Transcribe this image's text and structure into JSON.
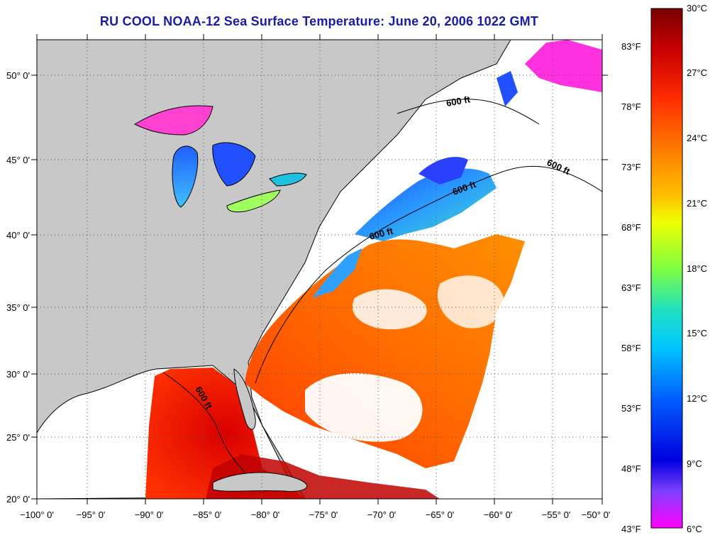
{
  "title": "RU COOL  NOAA-12  Sea Surface Temperature:  June 20, 2006 1022 GMT",
  "map": {
    "lat_labels": [
      "50° 0'",
      "45° 0'",
      "40° 0'",
      "35° 0'",
      "30° 0'",
      "25° 0'",
      "20° 0'"
    ],
    "lon_labels": [
      "−100° 0'",
      "−95° 0'",
      "−90° 0'",
      "−85° 0'",
      "−80° 0'",
      "−75° 0'",
      "−70° 0'",
      "−65° 0'",
      "−60° 0'",
      "−55° 0'",
      "−50° 0'"
    ],
    "contour_label": "600 ft",
    "colors": {
      "land": "#c8c8c8",
      "no_data": "#ffffff",
      "grid": "#555555"
    }
  },
  "colorbar": {
    "fahrenheit_labels": [
      "83°F",
      "78°F",
      "73°F",
      "68°F",
      "63°F",
      "58°F",
      "53°F",
      "48°F",
      "43°F"
    ],
    "celsius_labels": [
      "30°C",
      "27°C",
      "24°C",
      "21°C",
      "18°C",
      "15°C",
      "12°C",
      "9°C",
      "6°C"
    ],
    "gradient": [
      "#7a0000",
      "#c80000",
      "#ff2a00",
      "#ff7a00",
      "#ffc000",
      "#f0ff00",
      "#80ff40",
      "#20e0c0",
      "#00c8ff",
      "#0060ff",
      "#0000e0",
      "#8040ff",
      "#ff00ff"
    ]
  }
}
